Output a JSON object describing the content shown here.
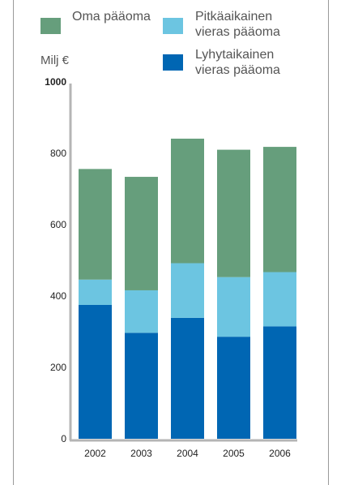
{
  "chart_data": {
    "type": "bar",
    "stacked": true,
    "categories": [
      "2002",
      "2003",
      "2004",
      "2005",
      "2006"
    ],
    "series": [
      {
        "name": "Lyhytaikainen vieras pääoma",
        "color": "#0066b3",
        "values": [
          375,
          297,
          339,
          286,
          315
        ]
      },
      {
        "name": "Pitkäaikainen vieras pääoma",
        "color": "#6cc5e1",
        "values": [
          71,
          119,
          153,
          167,
          152
        ]
      },
      {
        "name": "Oma pääoma",
        "color": "#669e7c",
        "values": [
          310,
          318,
          349,
          357,
          351
        ]
      }
    ],
    "ylabel": "Milj €",
    "ylim": [
      0,
      1000
    ],
    "yticks": [
      0,
      200,
      400,
      600,
      800,
      1000
    ],
    "grid": false,
    "legend": [
      {
        "lines": [
          "Oma pääoma"
        ],
        "color": "#669e7c"
      },
      {
        "lines": [
          "Pitkäaikainen",
          "vieras pääoma"
        ],
        "color": "#6cc5e1"
      },
      {
        "lines": [
          "Lyhytaikainen",
          "vieras pääoma"
        ],
        "color": "#0066b3"
      }
    ]
  }
}
